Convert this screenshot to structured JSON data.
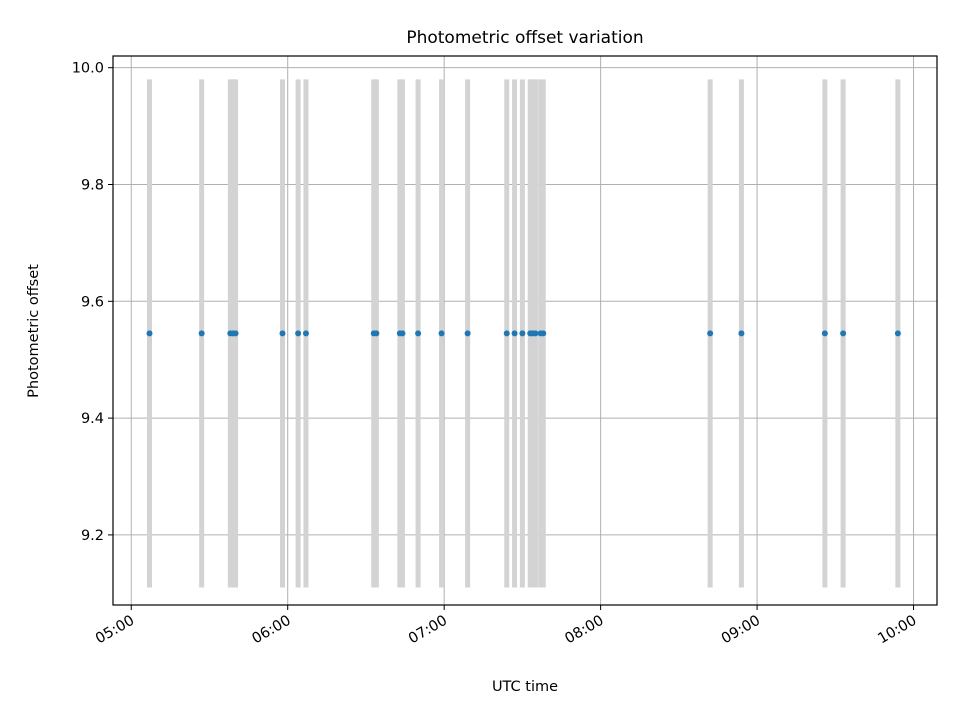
{
  "chart_data": {
    "type": "scatter",
    "title": "Photometric offset variation",
    "xlabel": "UTC time",
    "ylabel": "Photometric offset",
    "x_axis": {
      "min": "04:53",
      "max": "10:09",
      "ticks": [
        "05:00",
        "06:00",
        "07:00",
        "08:00",
        "09:00",
        "10:00"
      ]
    },
    "y_axis": {
      "min": 9.08,
      "max": 10.02,
      "ticks": [
        "9.2",
        "9.4",
        "9.6",
        "9.8",
        "10.0"
      ]
    },
    "grid": true,
    "colors": {
      "points": "#1f77b4",
      "bands": "#d3d3d3",
      "grid": "#b0b0b0"
    },
    "bands": {
      "ymin": 9.11,
      "ymax": 9.98,
      "times": [
        "05:07",
        "05:27",
        "05:38",
        "05:39",
        "05:40",
        "05:58",
        "06:04",
        "06:07",
        "06:33",
        "06:34",
        "06:43",
        "06:44",
        "06:50",
        "06:59",
        "07:09",
        "07:24",
        "07:27",
        "07:30",
        "07:33",
        "07:34",
        "07:35",
        "07:37",
        "07:38",
        "08:42",
        "08:54",
        "09:26",
        "09:33",
        "09:54"
      ]
    },
    "points": {
      "y": 9.545,
      "x": [
        "05:07",
        "05:27",
        "05:38",
        "05:39",
        "05:40",
        "05:58",
        "06:04",
        "06:07",
        "06:33",
        "06:34",
        "06:43",
        "06:44",
        "06:50",
        "06:59",
        "07:09",
        "07:24",
        "07:27",
        "07:30",
        "07:33",
        "07:34",
        "07:35",
        "07:37",
        "07:38",
        "08:42",
        "08:54",
        "09:26",
        "09:33",
        "09:54"
      ]
    }
  }
}
